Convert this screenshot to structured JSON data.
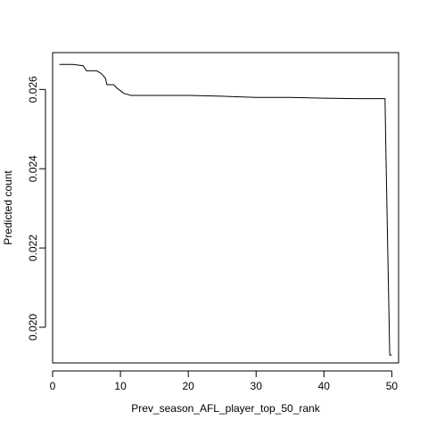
{
  "chart_data": {
    "type": "line",
    "xlabel": "Prev_season_AFL_player_top_50_rank",
    "ylabel": "Predicted count",
    "xlim": [
      0,
      51
    ],
    "ylim": [
      0.0191,
      0.02693
    ],
    "xticks": [
      0,
      10,
      20,
      30,
      40,
      50
    ],
    "xtick_labels": [
      "0",
      "10",
      "20",
      "30",
      "40",
      "50"
    ],
    "yticks": [
      0.02,
      0.022,
      0.024,
      0.026
    ],
    "ytick_labels": [
      "0.020",
      "0.022",
      "0.024",
      "0.026"
    ],
    "grid": false,
    "line_color": "#000000",
    "series": [
      {
        "x": [
          1,
          3,
          4.5,
          5,
          6.5,
          7.2,
          7.8,
          8,
          9,
          9.5,
          10,
          10.5,
          11,
          11.5,
          12,
          20,
          25,
          30,
          35,
          40,
          45,
          49,
          49.1,
          49.4,
          49.7,
          50
        ],
        "y": [
          0.02663,
          0.02663,
          0.0266,
          0.02647,
          0.02647,
          0.0264,
          0.02628,
          0.02612,
          0.02612,
          0.02603,
          0.02597,
          0.0259,
          0.02588,
          0.02585,
          0.02585,
          0.02585,
          0.02583,
          0.0258,
          0.0258,
          0.02578,
          0.02577,
          0.02577,
          0.0248,
          0.022,
          0.0193,
          0.0193
        ]
      }
    ]
  }
}
